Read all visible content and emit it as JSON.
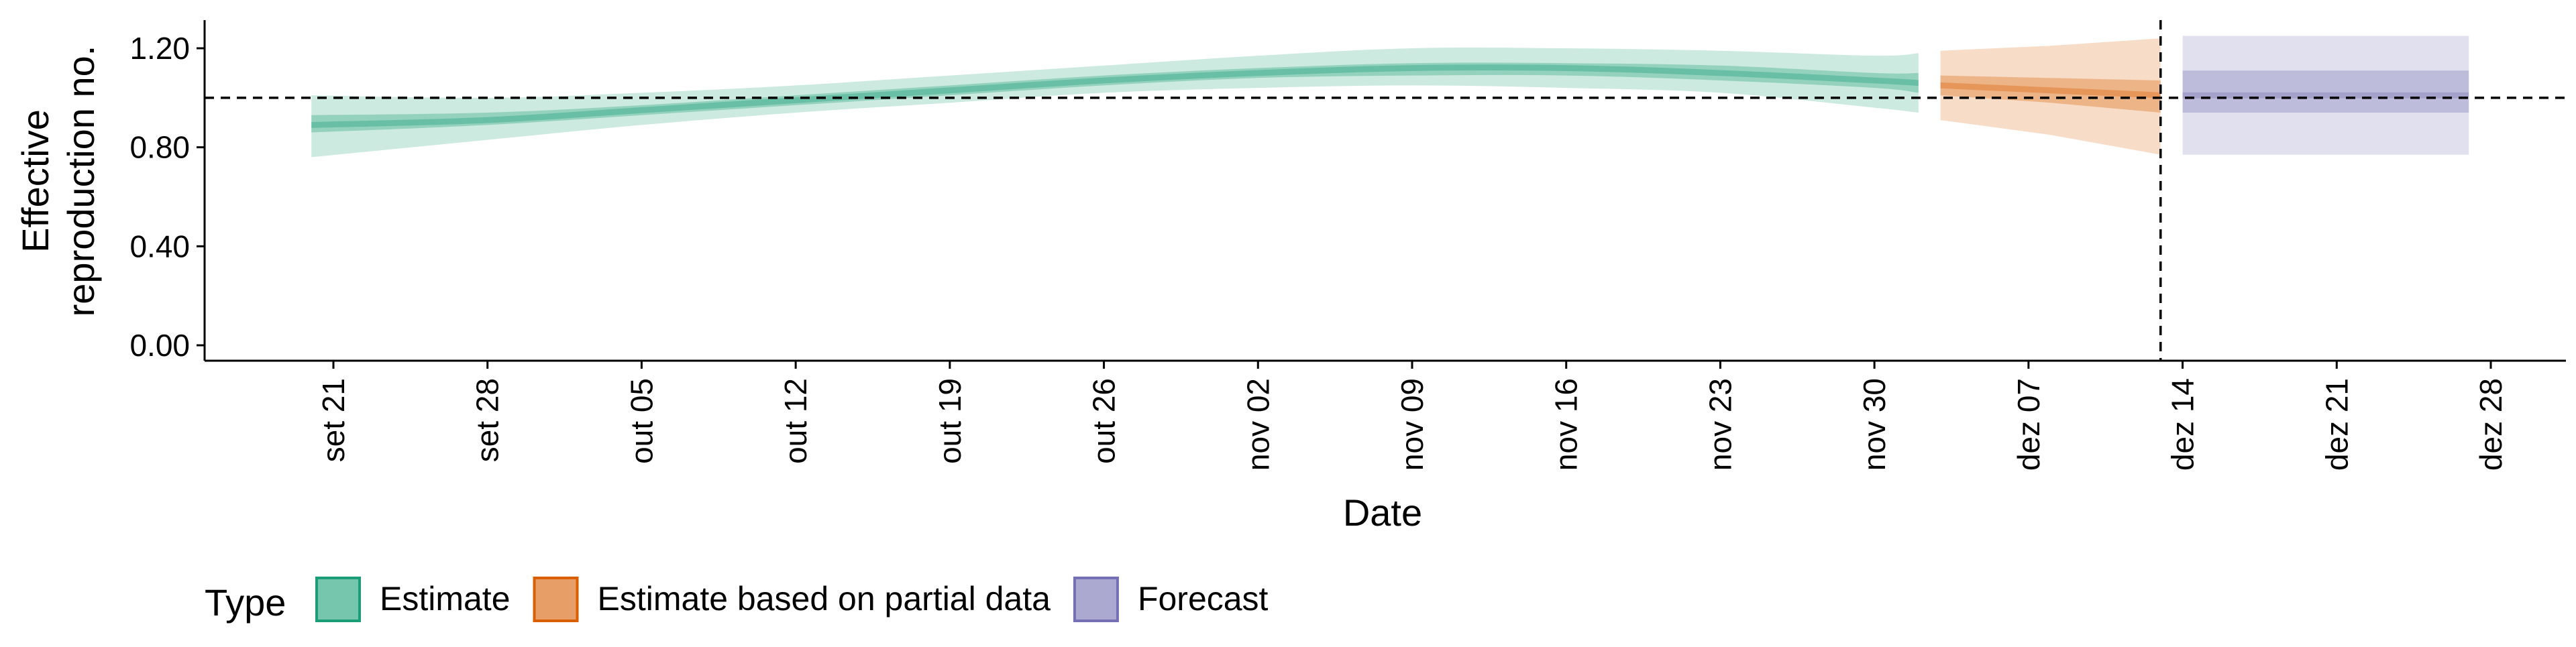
{
  "chart_data": {
    "type": "area",
    "xlabel": "Date",
    "ylabel_lines": [
      "Effective",
      "reproduction no."
    ],
    "ylim": [
      0,
      1.3
    ],
    "xlim": [
      "2020-09-17",
      "2020-12-31"
    ],
    "y_ticks": [
      {
        "value": 0.0,
        "label": "0.00"
      },
      {
        "value": 0.4,
        "label": "0.40"
      },
      {
        "value": 0.8,
        "label": "0.80"
      },
      {
        "value": 1.2,
        "label": "1.20"
      }
    ],
    "x_ticks": [
      {
        "date": "2020-09-21",
        "label": "set 21"
      },
      {
        "date": "2020-09-28",
        "label": "set 28"
      },
      {
        "date": "2020-10-05",
        "label": "out 05"
      },
      {
        "date": "2020-10-12",
        "label": "out 12"
      },
      {
        "date": "2020-10-19",
        "label": "out 19"
      },
      {
        "date": "2020-10-26",
        "label": "out 26"
      },
      {
        "date": "2020-11-02",
        "label": "nov 02"
      },
      {
        "date": "2020-11-09",
        "label": "nov 09"
      },
      {
        "date": "2020-11-16",
        "label": "nov 16"
      },
      {
        "date": "2020-11-23",
        "label": "nov 23"
      },
      {
        "date": "2020-11-30",
        "label": "nov 30"
      },
      {
        "date": "2020-12-07",
        "label": "dez 07"
      },
      {
        "date": "2020-12-14",
        "label": "dez 14"
      },
      {
        "date": "2020-12-21",
        "label": "dez 21"
      },
      {
        "date": "2020-12-28",
        "label": "dez 28"
      }
    ],
    "reference_lines": {
      "horizontal_y": 1.0,
      "vertical_date": "2020-12-13",
      "style": "dashed"
    },
    "grid": false,
    "legend": {
      "title": "Type",
      "position": "bottom-left",
      "items": [
        {
          "label": "Estimate",
          "color": "#1b9e77"
        },
        {
          "label": "Estimate based on partial data",
          "color": "#d95f02"
        },
        {
          "label": "Forecast",
          "color": "#7570b3"
        }
      ]
    },
    "series": [
      {
        "name": "Estimate",
        "color": "#1b9e77",
        "points": [
          {
            "date": "2020-09-20",
            "median": 0.89,
            "lower_90": 0.76,
            "upper_90": 1.01,
            "lower_50": 0.86,
            "upper_50": 0.93
          },
          {
            "date": "2020-09-28",
            "median": 0.91,
            "lower_90": 0.83,
            "upper_90": 1.0,
            "lower_50": 0.89,
            "upper_50": 0.94
          },
          {
            "date": "2020-10-05",
            "median": 0.95,
            "lower_90": 0.89,
            "upper_90": 1.02,
            "lower_50": 0.93,
            "upper_50": 0.97
          },
          {
            "date": "2020-10-12",
            "median": 0.99,
            "lower_90": 0.94,
            "upper_90": 1.05,
            "lower_50": 0.97,
            "upper_50": 1.01
          },
          {
            "date": "2020-10-19",
            "median": 1.03,
            "lower_90": 0.98,
            "upper_90": 1.09,
            "lower_50": 1.01,
            "upper_50": 1.05
          },
          {
            "date": "2020-10-26",
            "median": 1.07,
            "lower_90": 1.02,
            "upper_90": 1.13,
            "lower_50": 1.05,
            "upper_50": 1.09
          },
          {
            "date": "2020-11-02",
            "median": 1.1,
            "lower_90": 1.04,
            "upper_90": 1.17,
            "lower_50": 1.08,
            "upper_50": 1.12
          },
          {
            "date": "2020-11-09",
            "median": 1.12,
            "lower_90": 1.05,
            "upper_90": 1.2,
            "lower_50": 1.09,
            "upper_50": 1.14
          },
          {
            "date": "2020-11-16",
            "median": 1.12,
            "lower_90": 1.04,
            "upper_90": 1.2,
            "lower_50": 1.09,
            "upper_50": 1.14
          },
          {
            "date": "2020-11-23",
            "median": 1.1,
            "lower_90": 1.02,
            "upper_90": 1.19,
            "lower_50": 1.07,
            "upper_50": 1.13
          },
          {
            "date": "2020-11-30",
            "median": 1.07,
            "lower_90": 0.96,
            "upper_90": 1.17,
            "lower_50": 1.04,
            "upper_50": 1.1
          },
          {
            "date": "2020-12-02",
            "median": 1.06,
            "lower_90": 0.94,
            "upper_90": 1.18,
            "lower_50": 1.02,
            "upper_50": 1.1
          }
        ]
      },
      {
        "name": "Estimate based on partial data",
        "color": "#d95f02",
        "points": [
          {
            "date": "2020-12-03",
            "median": 1.05,
            "lower_90": 0.91,
            "upper_90": 1.19,
            "lower_50": 1.01,
            "upper_50": 1.09
          },
          {
            "date": "2020-12-08",
            "median": 1.03,
            "lower_90": 0.85,
            "upper_90": 1.21,
            "lower_50": 0.98,
            "upper_50": 1.08
          },
          {
            "date": "2020-12-13",
            "median": 1.01,
            "lower_90": 0.77,
            "upper_90": 1.24,
            "lower_50": 0.94,
            "upper_50": 1.07
          }
        ]
      },
      {
        "name": "Forecast",
        "color": "#7570b3",
        "points": [
          {
            "date": "2020-12-14",
            "median": 1.01,
            "lower_90": 0.77,
            "upper_90": 1.25,
            "lower_50": 0.94,
            "upper_50": 1.11
          },
          {
            "date": "2020-12-27",
            "median": 1.01,
            "lower_90": 0.77,
            "upper_90": 1.25,
            "lower_50": 0.94,
            "upper_50": 1.11
          }
        ]
      }
    ]
  }
}
